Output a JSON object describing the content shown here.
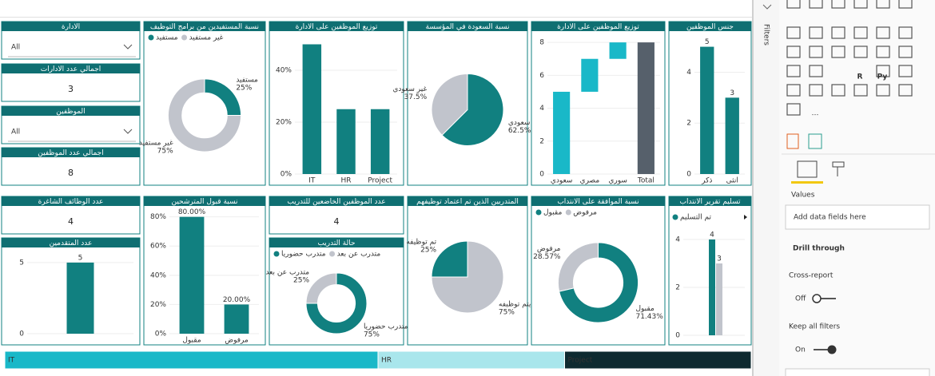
{
  "slicers": [
    {
      "title": "الادارة",
      "value": "All"
    },
    {
      "title": "الموظفين",
      "value": "All"
    }
  ],
  "cards": [
    {
      "title": "اجمالي عدد الادارات",
      "value": 3
    },
    {
      "title": "اجمالي عدد الموظفين",
      "value": 8
    },
    {
      "title": "عدد الوظائف الشاغرة",
      "value": 4
    },
    {
      "title": "عدد الموظفين الخاضعين للتدريب",
      "value": 4
    }
  ],
  "charts": [
    {
      "type": "donut",
      "title": "نسبة المستفيدين من برامج التوظيف",
      "legend": true,
      "categories": [
        "غير مستفيد",
        "مستفيد"
      ],
      "values": [
        75,
        25
      ],
      "value_labels": [
        "75%",
        "25%"
      ],
      "colors": [
        "#c1c4cc",
        "#118080"
      ]
    },
    {
      "type": "bar",
      "title": "توزيع الموظفين على الادارة",
      "categories": [
        "IT",
        "HR",
        "Project"
      ],
      "values": [
        50,
        25,
        25
      ],
      "ylim": [
        0,
        52
      ],
      "yticks": [
        {
          "value": 0,
          "label": "0%"
        },
        {
          "value": 20,
          "label": "20%"
        },
        {
          "value": 40,
          "label": "40%"
        }
      ],
      "color": "#118080",
      "data_labels": false
    },
    {
      "type": "pie",
      "title": "نسبة السعودة في المؤسسة",
      "legend": false,
      "categories": [
        "غير سعودي",
        "سعودي"
      ],
      "values": [
        37.5,
        62.5
      ],
      "value_labels": [
        "37.5%",
        "62.5%"
      ],
      "colors": [
        "#c1c4cc",
        "#118080"
      ]
    },
    {
      "type": "waterfall",
      "title": "توزيع الموظفين على الادارة",
      "categories": [
        "سعودي",
        "مصري",
        "سوري",
        "Total"
      ],
      "values": [
        5,
        2,
        1,
        8
      ],
      "ylim": [
        0,
        8.2
      ],
      "yticks": [
        0,
        2,
        4,
        6,
        8
      ],
      "color": "#19b8c8",
      "total_color": "#56606b"
    },
    {
      "type": "bar",
      "title": "جنس الموظفين",
      "categories": [
        "ذكر",
        "انثى"
      ],
      "values": [
        5,
        3
      ],
      "ylim": [
        0,
        5.3
      ],
      "yticks": [
        0,
        2,
        4
      ],
      "color": "#118080",
      "data_labels": true
    },
    {
      "type": "bar",
      "title": "عدد المتقدمين",
      "categories": [
        null
      ],
      "values": [
        5
      ],
      "ylim": [
        0,
        5.5
      ],
      "yticks": [
        0,
        5
      ],
      "color": "#118080",
      "data_labels": true
    },
    {
      "type": "bar",
      "title": "نسبة قبول المترشحين",
      "categories": [
        "مقبول",
        "مرفوض"
      ],
      "values": [
        80,
        20
      ],
      "value_labels": [
        "80.00%",
        "20.00%"
      ],
      "ylim": [
        0,
        82
      ],
      "yticks": [
        {
          "value": 0,
          "label": "0%"
        },
        {
          "value": 20,
          "label": "20%"
        },
        {
          "value": 40,
          "label": "40%"
        },
        {
          "value": 60,
          "label": "60%"
        },
        {
          "value": 80,
          "label": "80%"
        }
      ],
      "color": "#118080",
      "data_labels": true
    },
    {
      "type": "donut",
      "title": "حالة التدريب",
      "legend": true,
      "categories": [
        "متدرب عن بعد",
        "متدرب حضوريا"
      ],
      "values": [
        25,
        75
      ],
      "value_labels": [
        "25%",
        "75%"
      ],
      "colors": [
        "#c1c4cc",
        "#118080"
      ]
    },
    {
      "type": "pie",
      "title": "المتدربين الذين تم اعتماد توظيفهم",
      "legend": false,
      "categories": [
        "تم توظيفه",
        "لم يتم توظيفه"
      ],
      "values": [
        25,
        75
      ],
      "value_labels": [
        "25%",
        "75%"
      ],
      "colors": [
        "#118080",
        "#c1c4cc"
      ]
    },
    {
      "type": "donut",
      "title": "نسبة الموافقة على الانتداب",
      "legend": true,
      "categories": [
        "مرفوض",
        "مقبول"
      ],
      "values": [
        28.57,
        71.43
      ],
      "value_labels": [
        "28.57%",
        "71.43%"
      ],
      "colors": [
        "#c1c4cc",
        "#118080"
      ]
    },
    {
      "type": "grouped-bar",
      "title": "تسليم تقرير الانتداب",
      "legend": true,
      "series": [
        {
          "name": "تم التسليم",
          "color": "#118080",
          "values": [
            4
          ]
        },
        {
          "color": "#c1c4cc",
          "values": [
            3
          ]
        }
      ],
      "ylim": [
        0,
        4.6
      ],
      "yticks": [
        0,
        2,
        4
      ]
    },
    {
      "type": "strip",
      "categories": [
        "IT",
        "HR",
        "Project"
      ],
      "values": [
        4,
        2,
        2
      ],
      "colors": [
        "#19b8c8",
        "#a9e6ec",
        "#0e2a30"
      ]
    }
  ],
  "pane": {
    "filters": "Filters",
    "icon_labels": [
      "R",
      "Py",
      "⋯"
    ],
    "values": "Values",
    "add_fields": "Add data fields here",
    "drill": "Drill through",
    "cross": "Cross-report",
    "off": "Off",
    "keep": "Keep all filters",
    "on": "On"
  }
}
